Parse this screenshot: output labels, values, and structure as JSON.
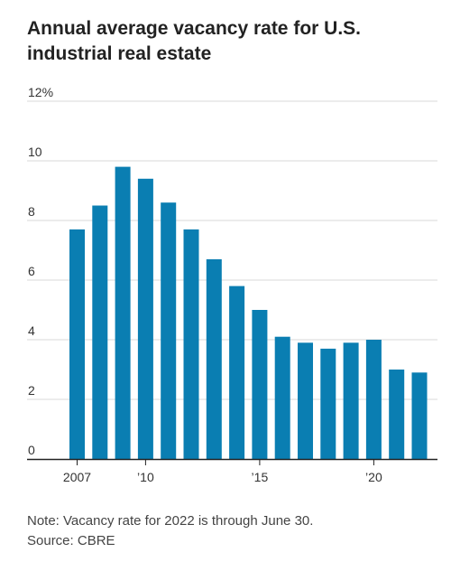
{
  "title": "Annual average vacancy rate for U.S. industrial real estate",
  "note": "Note: Vacancy rate for 2022 is through June 30.",
  "source": "Source: CBRE",
  "colors": {
    "bar": "#0a7eb2",
    "gridline": "#d9d9d9",
    "axis": "#222222"
  },
  "chart_data": {
    "type": "bar",
    "title": "Annual average vacancy rate for U.S. industrial real estate",
    "xlabel": "",
    "ylabel": "",
    "categories": [
      "2007",
      "2008",
      "2009",
      "2010",
      "2011",
      "2012",
      "2013",
      "2014",
      "2015",
      "2016",
      "2017",
      "2018",
      "2019",
      "2020",
      "2021",
      "2022"
    ],
    "values": [
      7.7,
      8.5,
      9.8,
      9.4,
      8.6,
      7.7,
      6.7,
      5.8,
      5.0,
      4.1,
      3.9,
      3.7,
      3.9,
      4.0,
      3.0,
      2.9
    ],
    "ylim": [
      0,
      12
    ],
    "y_ticks": [
      {
        "value": 12,
        "label": "12%"
      },
      {
        "value": 10,
        "label": "10"
      },
      {
        "value": 8,
        "label": "8"
      },
      {
        "value": 6,
        "label": "6"
      },
      {
        "value": 4,
        "label": "4"
      },
      {
        "value": 2,
        "label": "2"
      },
      {
        "value": 0,
        "label": "0"
      }
    ],
    "x_ticks": [
      {
        "category": "2007",
        "label": "2007"
      },
      {
        "category": "2010",
        "label": "’10"
      },
      {
        "category": "2015",
        "label": "’15"
      },
      {
        "category": "2020",
        "label": "’20"
      }
    ],
    "grid": true,
    "legend": "none"
  }
}
